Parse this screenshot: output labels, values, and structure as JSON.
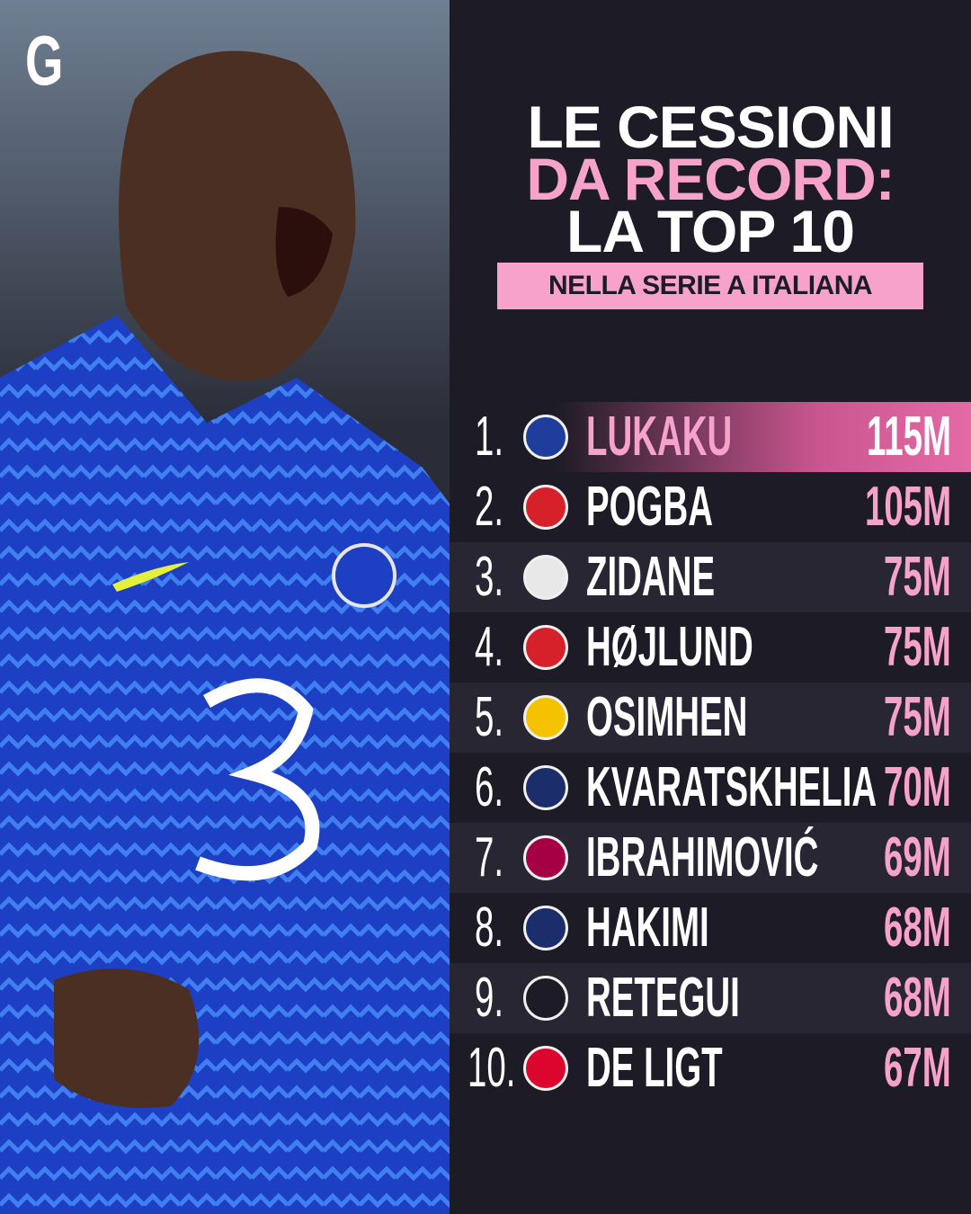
{
  "header": {
    "logo": "G",
    "title_lines": [
      "LE CESSIONI",
      "DA RECORD:",
      "LA TOP 10"
    ],
    "subtitle": "NELLA SERIE A ITALIANA"
  },
  "ranking": [
    {
      "rank": "1.",
      "name": "LUKAKU",
      "fee": "115M"
    },
    {
      "rank": "2.",
      "name": "POGBA",
      "fee": "105M"
    },
    {
      "rank": "3.",
      "name": "ZIDANE",
      "fee": "75M"
    },
    {
      "rank": "4.",
      "name": "HØJLUND",
      "fee": "75M"
    },
    {
      "rank": "5.",
      "name": "OSIMHEN",
      "fee": "75M"
    },
    {
      "rank": "6.",
      "name": "KVARATSKHELIA",
      "fee": "70M"
    },
    {
      "rank": "7.",
      "name": "IBRAHIMOVIĆ",
      "fee": "69M"
    },
    {
      "rank": "8.",
      "name": "HAKIMI",
      "fee": "68M"
    },
    {
      "rank": "9.",
      "name": "RETEGUI",
      "fee": "68M"
    },
    {
      "rank": "10.",
      "name": "DE LIGT",
      "fee": "67M"
    }
  ]
}
